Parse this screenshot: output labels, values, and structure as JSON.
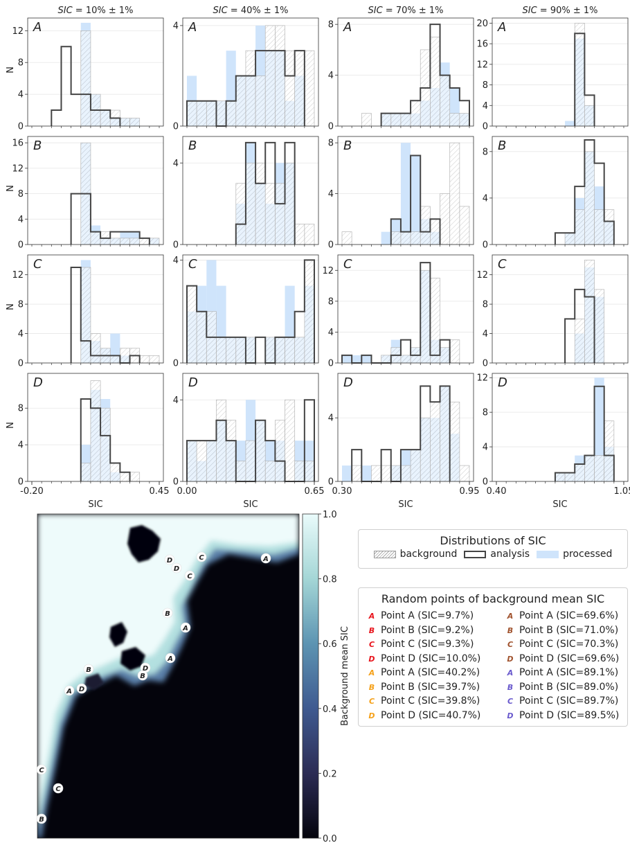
{
  "colors": {
    "red": "#e8141c",
    "orange": "#f5a11a",
    "brown": "#a0522d",
    "purple": "#6a5acd",
    "processed": "#cfe4fb",
    "analysis": "#444444",
    "background_hatch": "#a8a8a8"
  },
  "chart_data": {
    "type": "bar",
    "subtype": "histogram-grid",
    "ylabel": "N",
    "xlabel": "SIC",
    "columns": [
      {
        "title": "SIC = 10% ± 1%",
        "title_parts": [
          "SIC",
          " = 10% ± 1%"
        ],
        "letter_color": "#e8141c",
        "xlim": [
          -0.2,
          0.45
        ],
        "xtick_labels": [
          "-0.20",
          "0.45"
        ]
      },
      {
        "title": "SIC = 40% ± 1%",
        "title_parts": [
          "SIC",
          " = 40% ± 1%"
        ],
        "letter_color": "#f5a11a",
        "xlim": [
          0.0,
          0.65
        ],
        "xtick_labels": [
          "0.00",
          "0.65"
        ]
      },
      {
        "title": "SIC = 70% ± 1%",
        "title_parts": [
          "SIC",
          " = 70% ± 1%"
        ],
        "letter_color": "#a0522d",
        "xlim": [
          0.3,
          0.95
        ],
        "xtick_labels": [
          "0.30",
          "0.95"
        ]
      },
      {
        "title": "SIC = 90% ± 1%",
        "title_parts": [
          "SIC",
          " = 90% ± 1%"
        ],
        "letter_color": "#6a5acd",
        "xlim": [
          0.4,
          1.05
        ],
        "xtick_labels": [
          "0.40",
          "1.05"
        ]
      }
    ],
    "row_letters": [
      "A",
      "B",
      "C",
      "D"
    ],
    "panels": [
      [
        {
          "ymax": 13.6,
          "yticks": [
            0,
            4,
            8,
            12
          ],
          "bins_start": -0.2,
          "bin_width": 0.05,
          "background": [
            0,
            0,
            0,
            0,
            0,
            12,
            4,
            2,
            2,
            1,
            1,
            0,
            0
          ],
          "processed": [
            0,
            0,
            0,
            0,
            0,
            13,
            4,
            2,
            1,
            1,
            1,
            0,
            0
          ],
          "analysis": [
            0,
            0,
            2,
            10,
            4,
            4,
            2,
            2,
            1,
            0,
            0,
            0,
            0
          ]
        },
        {
          "ymax": 4.3,
          "yticks": [
            0,
            4
          ],
          "bins_start": 0.0,
          "bin_width": 0.05,
          "background": [
            1,
            1,
            1,
            1,
            1,
            2,
            3,
            2,
            4,
            4,
            3,
            3,
            3
          ],
          "processed": [
            2,
            1,
            1,
            1,
            3,
            2,
            2,
            4,
            3,
            3,
            1,
            2,
            0
          ],
          "analysis": [
            1,
            1,
            1,
            0,
            1,
            2,
            2,
            3,
            3,
            3,
            2,
            3,
            0
          ]
        },
        {
          "ymax": 8.5,
          "yticks": [
            0,
            4,
            8
          ],
          "bins_start": 0.3,
          "bin_width": 0.05,
          "background": [
            0,
            0,
            1,
            0,
            1,
            1,
            1,
            2,
            6,
            7,
            4,
            1,
            1
          ],
          "processed": [
            0,
            0,
            0,
            0,
            1,
            1,
            1,
            1,
            2,
            3,
            5,
            3,
            1
          ],
          "analysis": [
            0,
            0,
            0,
            0,
            1,
            1,
            1,
            2,
            3,
            8,
            4,
            3,
            2
          ]
        },
        {
          "ymax": 21,
          "yticks": [
            0,
            4,
            8,
            12,
            16,
            20
          ],
          "bins_start": 0.4,
          "bin_width": 0.05,
          "background": [
            0,
            0,
            0,
            0,
            0,
            0,
            0,
            0,
            20,
            4,
            0,
            0,
            0
          ],
          "processed": [
            0,
            0,
            0,
            0,
            0,
            0,
            0,
            1,
            17,
            4,
            0,
            0,
            0
          ],
          "analysis": [
            0,
            0,
            0,
            0,
            0,
            0,
            0,
            0,
            18,
            6,
            0,
            0,
            0
          ]
        }
      ],
      [
        {
          "ymax": 17,
          "yticks": [
            0,
            4,
            8,
            12,
            16
          ],
          "bins_start": -0.2,
          "bin_width": 0.05,
          "background": [
            0,
            0,
            0,
            0,
            0,
            16,
            2,
            2,
            1,
            1,
            1,
            1,
            1
          ],
          "processed": [
            0,
            0,
            0,
            0,
            0,
            16,
            3,
            1,
            1,
            2,
            2,
            0,
            1
          ],
          "analysis": [
            0,
            0,
            0,
            0,
            8,
            8,
            2,
            1,
            2,
            2,
            2,
            1,
            0
          ]
        },
        {
          "ymax": 5.3,
          "yticks": [
            0,
            4
          ],
          "bins_start": 0.0,
          "bin_width": 0.05,
          "background": [
            0,
            0,
            0,
            0,
            0,
            3,
            4,
            4,
            3,
            3,
            4,
            1,
            1
          ],
          "processed": [
            0,
            0,
            0,
            0,
            0,
            2,
            5,
            3,
            2,
            4,
            4,
            0,
            0
          ],
          "analysis": [
            0,
            0,
            0,
            0,
            0,
            1,
            5,
            3,
            5,
            2,
            5,
            0,
            0
          ]
        },
        {
          "ymax": 8.5,
          "yticks": [
            0,
            4,
            8
          ],
          "bins_start": 0.3,
          "bin_width": 0.05,
          "background": [
            1,
            0,
            0,
            0,
            0,
            1,
            1,
            1,
            3,
            2,
            4,
            8,
            3
          ],
          "processed": [
            0,
            0,
            0,
            0,
            1,
            2,
            8,
            7,
            2,
            1,
            0,
            0,
            0
          ],
          "analysis": [
            0,
            0,
            0,
            0,
            0,
            2,
            1,
            7,
            1,
            2,
            0,
            0,
            0
          ]
        },
        {
          "ymax": 9.3,
          "yticks": [
            0,
            4,
            8
          ],
          "bins_start": 0.4,
          "bin_width": 0.05,
          "background": [
            0,
            0,
            0,
            0,
            0,
            0,
            0,
            1,
            3,
            8,
            3,
            3,
            0
          ],
          "processed": [
            0,
            0,
            0,
            0,
            0,
            0,
            0,
            1,
            4,
            8,
            5,
            2,
            0
          ],
          "analysis": [
            0,
            0,
            0,
            0,
            0,
            0,
            1,
            1,
            5,
            9,
            7,
            2,
            0
          ]
        }
      ],
      [
        {
          "ymax": 14.7,
          "yticks": [
            0,
            4,
            8,
            12
          ],
          "bins_start": -0.2,
          "bin_width": 0.05,
          "background": [
            0,
            0,
            0,
            0,
            0,
            13,
            4,
            2,
            1,
            2,
            2,
            1,
            1
          ],
          "processed": [
            0,
            0,
            0,
            0,
            0,
            14,
            3,
            2,
            4,
            1,
            0,
            0,
            0
          ],
          "analysis": [
            0,
            0,
            0,
            0,
            13,
            3,
            1,
            1,
            1,
            0,
            1,
            0,
            0
          ]
        },
        {
          "ymax": 4.2,
          "yticks": [
            0,
            4
          ],
          "bins_start": 0.0,
          "bin_width": 0.05,
          "background": [
            3,
            2,
            2,
            1,
            1,
            1,
            1,
            0,
            1,
            1,
            1,
            1,
            4
          ],
          "processed": [
            2,
            3,
            4,
            3,
            1,
            1,
            1,
            0,
            1,
            1,
            3,
            1,
            3
          ],
          "analysis": [
            3,
            2,
            1,
            1,
            1,
            1,
            0,
            1,
            0,
            1,
            1,
            2,
            4
          ]
        },
        {
          "ymax": 14,
          "yticks": [
            0,
            4,
            8,
            12
          ],
          "bins_start": 0.3,
          "bin_width": 0.05,
          "background": [
            0,
            0,
            0,
            0,
            1,
            2,
            1,
            2,
            12,
            11,
            2,
            3,
            0
          ],
          "processed": [
            1,
            1,
            1,
            0,
            1,
            3,
            1,
            2,
            12,
            3,
            2,
            0,
            0
          ],
          "analysis": [
            1,
            0,
            1,
            0,
            0,
            1,
            3,
            1,
            13,
            1,
            3,
            0,
            0
          ]
        },
        {
          "ymax": 14.7,
          "yticks": [
            0,
            4,
            8,
            12
          ],
          "bins_start": 0.4,
          "bin_width": 0.05,
          "background": [
            0,
            0,
            0,
            0,
            0,
            0,
            0,
            0,
            6,
            14,
            10,
            0,
            0
          ],
          "processed": [
            0,
            0,
            0,
            0,
            0,
            0,
            0,
            0,
            4,
            13,
            9,
            0,
            0
          ],
          "analysis": [
            0,
            0,
            0,
            0,
            0,
            0,
            0,
            6,
            10,
            9,
            0,
            0,
            0
          ]
        }
      ],
      [
        {
          "ymax": 11.8,
          "yticks": [
            0,
            4,
            8
          ],
          "bins_start": -0.2,
          "bin_width": 0.05,
          "background": [
            0,
            0,
            0,
            0,
            0,
            2,
            11,
            8,
            2,
            1,
            1,
            0,
            0
          ],
          "processed": [
            0,
            0,
            0,
            0,
            0,
            4,
            10,
            9,
            1,
            0,
            0,
            0,
            0
          ],
          "analysis": [
            0,
            0,
            0,
            0,
            0,
            9,
            8,
            5,
            2,
            1,
            0,
            0,
            0
          ]
        },
        {
          "ymax": 5.3,
          "yticks": [
            0,
            4
          ],
          "bins_start": 0.0,
          "bin_width": 0.05,
          "background": [
            2,
            2,
            2,
            4,
            3,
            1,
            2,
            3,
            1,
            3,
            4,
            1,
            1
          ],
          "processed": [
            2,
            1,
            2,
            3,
            2,
            2,
            4,
            3,
            2,
            2,
            0,
            2,
            2
          ],
          "analysis": [
            2,
            2,
            2,
            3,
            2,
            0,
            0,
            3,
            2,
            1,
            0,
            0,
            4
          ]
        },
        {
          "ymax": 6.8,
          "yticks": [
            0,
            4
          ],
          "bins_start": 0.3,
          "bin_width": 0.05,
          "background": [
            0,
            1,
            0,
            1,
            1,
            1,
            1,
            2,
            4,
            5,
            6,
            5,
            1
          ],
          "processed": [
            1,
            0,
            1,
            0,
            0,
            1,
            2,
            2,
            4,
            4,
            6,
            3,
            0
          ],
          "analysis": [
            0,
            2,
            0,
            0,
            2,
            0,
            2,
            2,
            6,
            5,
            6,
            0,
            0
          ]
        },
        {
          "ymax": 12.5,
          "yticks": [
            0,
            4,
            8,
            12
          ],
          "bins_start": 0.4,
          "bin_width": 0.05,
          "background": [
            0,
            0,
            0,
            0,
            0,
            0,
            1,
            1,
            2,
            3,
            3,
            7,
            0
          ],
          "processed": [
            0,
            0,
            0,
            0,
            0,
            0,
            1,
            1,
            3,
            3,
            12,
            4,
            0
          ],
          "analysis": [
            0,
            0,
            0,
            0,
            0,
            0,
            1,
            1,
            2,
            3,
            11,
            3,
            0
          ]
        }
      ]
    ]
  },
  "map": {
    "colorbar_label": "Background mean SIC",
    "colorbar_ticks": [
      "0.0",
      "0.2",
      "0.4",
      "0.6",
      "0.8",
      "1.0"
    ],
    "colormap": [
      "#04040c",
      "#2c2c54",
      "#3f5a90",
      "#5d94b2",
      "#a4d6d6",
      "#eafbfb"
    ],
    "markers": [
      {
        "letter": "A",
        "group": "brown"
      },
      {
        "letter": "C",
        "group": "orange"
      },
      {
        "letter": "D",
        "group": "purple"
      },
      {
        "letter": "D",
        "group": "brown"
      },
      {
        "letter": "C",
        "group": "red"
      },
      {
        "letter": "B",
        "group": "purple"
      },
      {
        "letter": "A",
        "group": "red"
      },
      {
        "letter": "A",
        "group": "orange"
      },
      {
        "letter": "B",
        "group": "brown"
      },
      {
        "letter": "D",
        "group": "red"
      },
      {
        "letter": "B",
        "group": "red"
      },
      {
        "letter": "A",
        "group": "purple"
      },
      {
        "letter": "D",
        "group": "orange"
      },
      {
        "letter": "C",
        "group": "purple"
      },
      {
        "letter": "C",
        "group": "brown"
      },
      {
        "letter": "B",
        "group": "orange"
      }
    ]
  },
  "legend_distributions": {
    "title": "Distributions of SIC",
    "items": [
      "background",
      "analysis",
      "processed"
    ]
  },
  "legend_points": {
    "title": "Random points of background mean SIC",
    "items": [
      {
        "letter": "A",
        "group": "red",
        "label": "Point A (SIC=9.7%)"
      },
      {
        "letter": "A",
        "group": "brown",
        "label": "Point A (SIC=69.6%)"
      },
      {
        "letter": "B",
        "group": "red",
        "label": "Point B (SIC=9.2%)"
      },
      {
        "letter": "B",
        "group": "brown",
        "label": "Point B (SIC=71.0%)"
      },
      {
        "letter": "C",
        "group": "red",
        "label": "Point C (SIC=9.3%)"
      },
      {
        "letter": "C",
        "group": "brown",
        "label": "Point C (SIC=70.3%)"
      },
      {
        "letter": "D",
        "group": "red",
        "label": "Point D (SIC=10.0%)"
      },
      {
        "letter": "D",
        "group": "brown",
        "label": "Point D (SIC=69.6%)"
      },
      {
        "letter": "A",
        "group": "orange",
        "label": "Point A (SIC=40.2%)"
      },
      {
        "letter": "A",
        "group": "purple",
        "label": "Point A (SIC=89.1%)"
      },
      {
        "letter": "B",
        "group": "orange",
        "label": "Point B (SIC=39.7%)"
      },
      {
        "letter": "B",
        "group": "purple",
        "label": "Point B (SIC=89.0%)"
      },
      {
        "letter": "C",
        "group": "orange",
        "label": "Point C (SIC=39.8%)"
      },
      {
        "letter": "C",
        "group": "purple",
        "label": "Point C (SIC=89.7%)"
      },
      {
        "letter": "D",
        "group": "orange",
        "label": "Point D (SIC=40.7%)"
      },
      {
        "letter": "D",
        "group": "purple",
        "label": "Point D (SIC=89.5%)"
      }
    ]
  }
}
